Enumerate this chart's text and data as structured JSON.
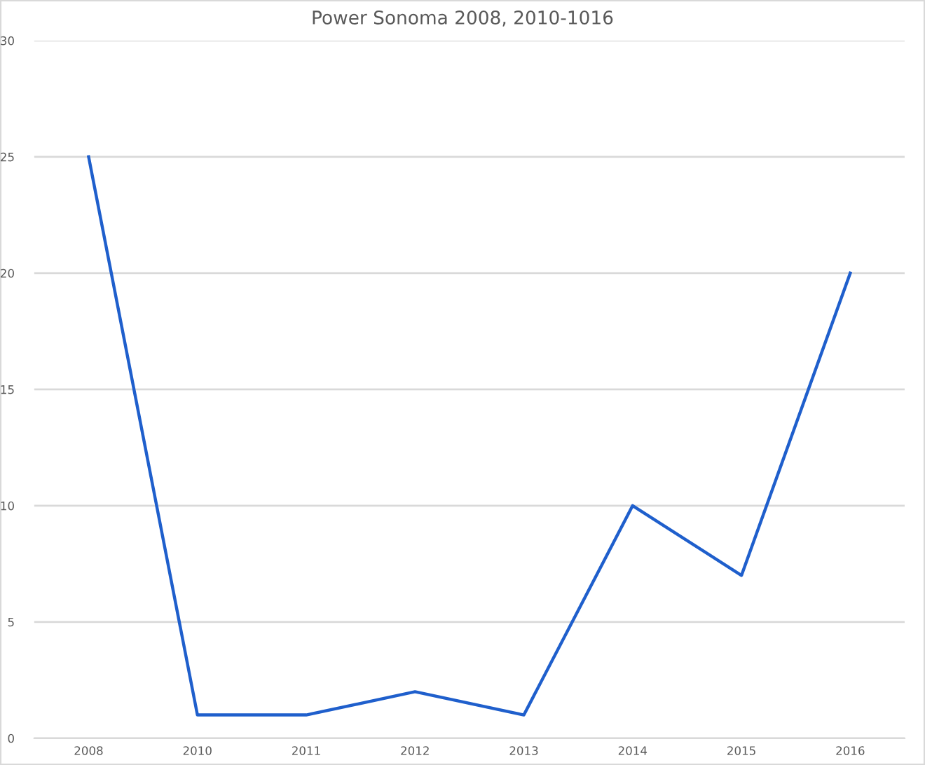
{
  "chart_data": {
    "type": "line",
    "title": "Power Sonoma 2008, 2010-1016",
    "categories": [
      "2008",
      "2010",
      "2011",
      "2012",
      "2013",
      "2014",
      "2015",
      "2016"
    ],
    "series": [
      {
        "color": "#1f5fcc",
        "values": [
          25,
          1,
          1,
          2,
          1,
          10,
          7,
          20
        ]
      }
    ],
    "ylim": [
      0,
      30
    ],
    "yticks": [
      0,
      5,
      10,
      15,
      20,
      25,
      30
    ],
    "grid": "y",
    "marker": "none",
    "line_style": "solid"
  }
}
